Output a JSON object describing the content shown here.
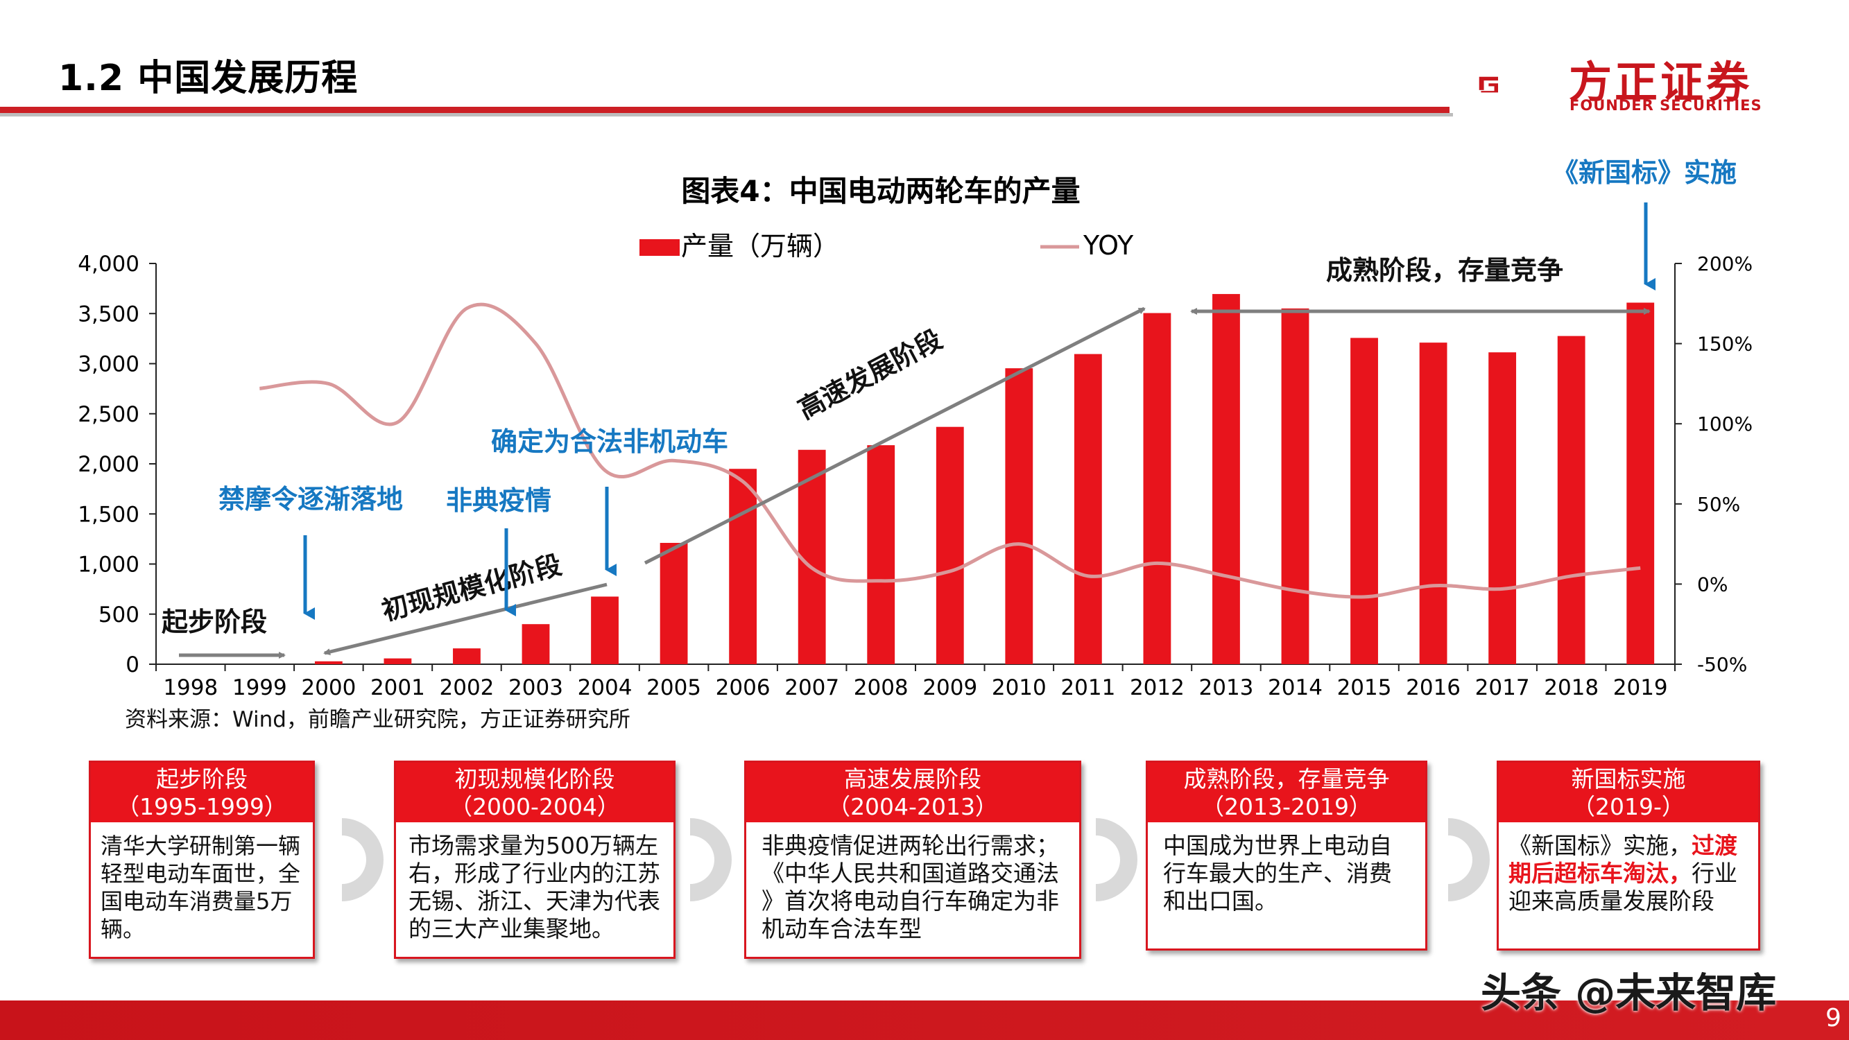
{
  "slide": {
    "title": "1.2 中国发展历程",
    "source": "资料来源：Wind，前瞻产业研究院，方正证券研究所",
    "watermark": "头条 @未来智库",
    "page_number": "9"
  },
  "logo": {
    "name": "方正证券",
    "sub": "FOUNDER SECURITIES"
  },
  "colors": {
    "brand_red": "#e8141c",
    "annotation_blue": "#1678c2",
    "yoy_line": "#d9989a",
    "arrow_grey": "#7f7f7f"
  },
  "chart_data": {
    "type": "bar",
    "title": "图表4：中国电动两轮车的产量",
    "categories": [
      "1998",
      "1999",
      "2000",
      "2001",
      "2002",
      "2003",
      "2004",
      "2005",
      "2006",
      "2007",
      "2008",
      "2009",
      "2010",
      "2011",
      "2012",
      "2013",
      "2014",
      "2015",
      "2016",
      "2017",
      "2018",
      "2019"
    ],
    "series": [
      {
        "name": "产量（万辆）",
        "kind": "bar",
        "axis": "left",
        "values": [
          0,
          0,
          29,
          58,
          158,
          400,
          675,
          1211,
          1950,
          2140,
          2186,
          2369,
          2954,
          3096,
          3505,
          3695,
          3551,
          3257,
          3210,
          3113,
          3276,
          3609
        ]
      },
      {
        "name": "YOY",
        "kind": "line",
        "axis": "right",
        "values": [
          null,
          122,
          125,
          101,
          172,
          150,
          71,
          77,
          64,
          10,
          2,
          8,
          25,
          5,
          13,
          5,
          -4,
          -8,
          -1,
          -3,
          5,
          10
        ]
      }
    ],
    "ylim": [
      0,
      4000
    ],
    "yticks": [
      "0",
      "500",
      "1,000",
      "1,500",
      "2,000",
      "2,500",
      "3,000",
      "3,500",
      "4,000"
    ],
    "y2lim": [
      -50,
      200
    ],
    "y2ticks": [
      "-50%",
      "0%",
      "50%",
      "100%",
      "150%",
      "200%"
    ],
    "legend": "top-center",
    "grid": false
  },
  "annotations": {
    "stages": [
      {
        "text": "起步阶段"
      },
      {
        "text": "初现规模化阶段"
      },
      {
        "text": "高速发展阶段"
      },
      {
        "text": "成熟阶段，存量竞争"
      }
    ],
    "events": [
      {
        "text": "禁摩令逐渐落地"
      },
      {
        "text": "非典疫情"
      },
      {
        "text": "确定为合法非机动车"
      },
      {
        "text": "《新国标》实施"
      }
    ]
  },
  "timeline": [
    {
      "title": "起步阶段",
      "period": "（1995-1999）",
      "lines": [
        "清华大学研制第一辆",
        "轻型电动车面世，全",
        "国电动车消费量5万",
        "辆。"
      ]
    },
    {
      "title": "初现规模化阶段",
      "period": "（2000-2004）",
      "lines": [
        "市场需求量为500万辆左",
        "右，形成了行业内的江苏",
        "无锡、浙江、天津为代表",
        "的三大产业集聚地。"
      ]
    },
    {
      "title": "高速发展阶段",
      "period": "（2004-2013）",
      "lines": [
        "非典疫情促进两轮出行需求；",
        "《中华人民共和国道路交通法",
        "》首次将电动自行车确定为非",
        "机动车合法车型"
      ]
    },
    {
      "title": "成熟阶段，存量竞争",
      "period": "（2013-2019）",
      "lines": [
        "中国成为世界上电动自",
        "行车最大的生产、消费",
        "和出口国。"
      ]
    },
    {
      "title": "新国标实施",
      "period": "（2019-）",
      "line1_a": "《新国标》实施，",
      "line1_b": "过渡",
      "line2_a": "期后超标车淘汰，",
      "line2_b": "行业",
      "line3": "迎来高质量发展阶段"
    }
  ]
}
